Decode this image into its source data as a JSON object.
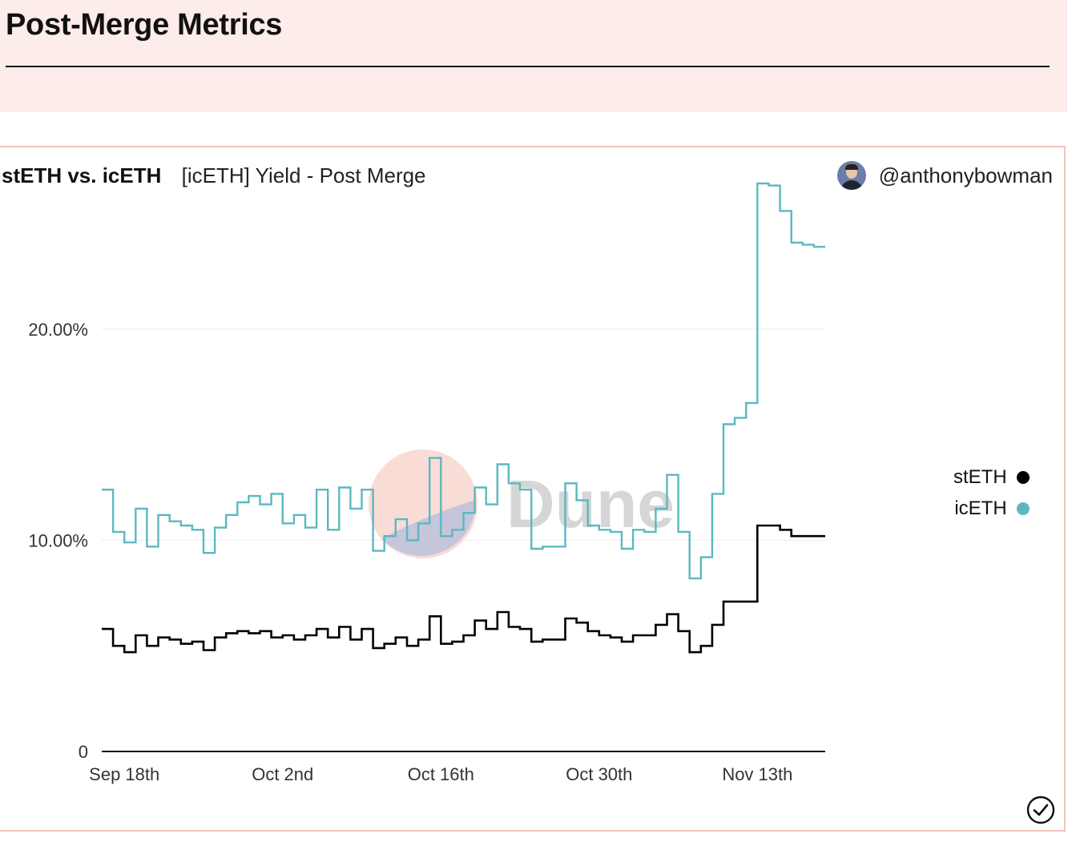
{
  "page": {
    "title": "Post-Merge Metrics"
  },
  "card": {
    "query_name": "stETH vs. icETH",
    "visualization_name": "[icETH] Yield - Post Merge",
    "author": "@anthonybowman"
  },
  "watermark": "Dune",
  "colors": {
    "steth": "#000000",
    "iceth": "#5bb8c0",
    "grid": "#ececec"
  },
  "chart_data": {
    "type": "line",
    "x_start": "2022-09-16",
    "x_end": "2022-11-19",
    "x_ticks": [
      {
        "date": "2022-09-18",
        "label": "Sep 18th"
      },
      {
        "date": "2022-10-02",
        "label": "Oct 2nd"
      },
      {
        "date": "2022-10-16",
        "label": "Oct 16th"
      },
      {
        "date": "2022-10-30",
        "label": "Oct 30th"
      },
      {
        "date": "2022-11-13",
        "label": "Nov 13th"
      }
    ],
    "y_ticks": [
      {
        "value": 0,
        "label": "0"
      },
      {
        "value": 0.1,
        "label": "10.00%"
      },
      {
        "value": 0.2,
        "label": "20.00%"
      }
    ],
    "ylim": [
      0,
      0.28
    ],
    "legend_position": "right",
    "series": [
      {
        "name": "stETH",
        "color_key": "steth",
        "points": [
          [
            "2022-09-16",
            0.058
          ],
          [
            "2022-09-17",
            0.05
          ],
          [
            "2022-09-18",
            0.047
          ],
          [
            "2022-09-19",
            0.055
          ],
          [
            "2022-09-20",
            0.05
          ],
          [
            "2022-09-21",
            0.054
          ],
          [
            "2022-09-22",
            0.053
          ],
          [
            "2022-09-23",
            0.051
          ],
          [
            "2022-09-24",
            0.052
          ],
          [
            "2022-09-25",
            0.048
          ],
          [
            "2022-09-26",
            0.054
          ],
          [
            "2022-09-27",
            0.056
          ],
          [
            "2022-09-28",
            0.057
          ],
          [
            "2022-09-29",
            0.056
          ],
          [
            "2022-09-30",
            0.057
          ],
          [
            "2022-10-01",
            0.054
          ],
          [
            "2022-10-02",
            0.055
          ],
          [
            "2022-10-03",
            0.053
          ],
          [
            "2022-10-04",
            0.055
          ],
          [
            "2022-10-05",
            0.058
          ],
          [
            "2022-10-06",
            0.054
          ],
          [
            "2022-10-07",
            0.059
          ],
          [
            "2022-10-08",
            0.053
          ],
          [
            "2022-10-09",
            0.058
          ],
          [
            "2022-10-10",
            0.049
          ],
          [
            "2022-10-11",
            0.051
          ],
          [
            "2022-10-12",
            0.054
          ],
          [
            "2022-10-13",
            0.05
          ],
          [
            "2022-10-14",
            0.053
          ],
          [
            "2022-10-15",
            0.064
          ],
          [
            "2022-10-16",
            0.051
          ],
          [
            "2022-10-17",
            0.052
          ],
          [
            "2022-10-18",
            0.055
          ],
          [
            "2022-10-19",
            0.062
          ],
          [
            "2022-10-20",
            0.058
          ],
          [
            "2022-10-21",
            0.066
          ],
          [
            "2022-10-22",
            0.059
          ],
          [
            "2022-10-23",
            0.058
          ],
          [
            "2022-10-24",
            0.052
          ],
          [
            "2022-10-25",
            0.053
          ],
          [
            "2022-10-26",
            0.053
          ],
          [
            "2022-10-27",
            0.063
          ],
          [
            "2022-10-28",
            0.061
          ],
          [
            "2022-10-29",
            0.057
          ],
          [
            "2022-10-30",
            0.055
          ],
          [
            "2022-10-31",
            0.054
          ],
          [
            "2022-11-01",
            0.052
          ],
          [
            "2022-11-02",
            0.055
          ],
          [
            "2022-11-03",
            0.055
          ],
          [
            "2022-11-04",
            0.06
          ],
          [
            "2022-11-05",
            0.065
          ],
          [
            "2022-11-06",
            0.057
          ],
          [
            "2022-11-07",
            0.047
          ],
          [
            "2022-11-08",
            0.05
          ],
          [
            "2022-11-09",
            0.06
          ],
          [
            "2022-11-10",
            0.071
          ],
          [
            "2022-11-11",
            0.071
          ],
          [
            "2022-11-12",
            0.071
          ],
          [
            "2022-11-13",
            0.107
          ],
          [
            "2022-11-14",
            0.107
          ],
          [
            "2022-11-15",
            0.105
          ],
          [
            "2022-11-16",
            0.102
          ],
          [
            "2022-11-17",
            0.102
          ],
          [
            "2022-11-18",
            0.102
          ]
        ]
      },
      {
        "name": "icETH",
        "color_key": "iceth",
        "points": [
          [
            "2022-09-16",
            0.124
          ],
          [
            "2022-09-17",
            0.104
          ],
          [
            "2022-09-18",
            0.099
          ],
          [
            "2022-09-19",
            0.115
          ],
          [
            "2022-09-20",
            0.097
          ],
          [
            "2022-09-21",
            0.112
          ],
          [
            "2022-09-22",
            0.109
          ],
          [
            "2022-09-23",
            0.107
          ],
          [
            "2022-09-24",
            0.105
          ],
          [
            "2022-09-25",
            0.094
          ],
          [
            "2022-09-26",
            0.106
          ],
          [
            "2022-09-27",
            0.112
          ],
          [
            "2022-09-28",
            0.118
          ],
          [
            "2022-09-29",
            0.121
          ],
          [
            "2022-09-30",
            0.117
          ],
          [
            "2022-10-01",
            0.122
          ],
          [
            "2022-10-02",
            0.108
          ],
          [
            "2022-10-03",
            0.112
          ],
          [
            "2022-10-04",
            0.106
          ],
          [
            "2022-10-05",
            0.124
          ],
          [
            "2022-10-06",
            0.105
          ],
          [
            "2022-10-07",
            0.125
          ],
          [
            "2022-10-08",
            0.115
          ],
          [
            "2022-10-09",
            0.124
          ],
          [
            "2022-10-10",
            0.095
          ],
          [
            "2022-10-11",
            0.102
          ],
          [
            "2022-10-12",
            0.11
          ],
          [
            "2022-10-13",
            0.1
          ],
          [
            "2022-10-14",
            0.108
          ],
          [
            "2022-10-15",
            0.139
          ],
          [
            "2022-10-16",
            0.102
          ],
          [
            "2022-10-17",
            0.105
          ],
          [
            "2022-10-18",
            0.113
          ],
          [
            "2022-10-19",
            0.125
          ],
          [
            "2022-10-20",
            0.117
          ],
          [
            "2022-10-21",
            0.136
          ],
          [
            "2022-10-22",
            0.127
          ],
          [
            "2022-10-23",
            0.124
          ],
          [
            "2022-10-24",
            0.096
          ],
          [
            "2022-10-25",
            0.097
          ],
          [
            "2022-10-26",
            0.097
          ],
          [
            "2022-10-27",
            0.127
          ],
          [
            "2022-10-28",
            0.119
          ],
          [
            "2022-10-29",
            0.107
          ],
          [
            "2022-10-30",
            0.105
          ],
          [
            "2022-10-31",
            0.104
          ],
          [
            "2022-11-01",
            0.096
          ],
          [
            "2022-11-02",
            0.105
          ],
          [
            "2022-11-03",
            0.104
          ],
          [
            "2022-11-04",
            0.115
          ],
          [
            "2022-11-05",
            0.131
          ],
          [
            "2022-11-06",
            0.104
          ],
          [
            "2022-11-07",
            0.082
          ],
          [
            "2022-11-08",
            0.092
          ],
          [
            "2022-11-09",
            0.122
          ],
          [
            "2022-11-10",
            0.155
          ],
          [
            "2022-11-11",
            0.158
          ],
          [
            "2022-11-12",
            0.165
          ],
          [
            "2022-11-13",
            0.269
          ],
          [
            "2022-11-14",
            0.268
          ],
          [
            "2022-11-15",
            0.256
          ],
          [
            "2022-11-16",
            0.241
          ],
          [
            "2022-11-17",
            0.24
          ],
          [
            "2022-11-18",
            0.239
          ]
        ]
      }
    ]
  }
}
